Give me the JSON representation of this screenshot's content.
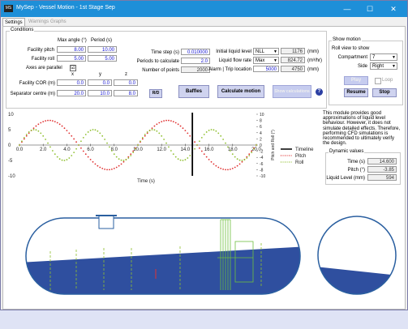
{
  "titlebar": {
    "icon_text": "MS",
    "title": "MySep - Vessel Motion - 1st Stage Sep",
    "minimize": "—",
    "maximize": "☐",
    "close": "✕"
  },
  "tabs": [
    {
      "label": "Settings"
    },
    {
      "label": "Warnings"
    },
    {
      "label": "Graphs"
    }
  ],
  "conditions": {
    "legend": "Conditions",
    "col_max_angle": "Max angle (°)",
    "col_period": "Period (s)",
    "facility_pitch_label": "Facility pitch",
    "facility_pitch_angle": "8.00",
    "facility_pitch_period": "10.00",
    "facility_roll_label": "Facility roll",
    "facility_roll_angle": "5.00",
    "facility_roll_period": "5.00",
    "axes_parallel_label": "Axes are parallel",
    "axes_parallel_checked": "☑",
    "col_x": "x",
    "col_y": "y",
    "col_z": "z",
    "facility_cor_label": "Facility COR (m)",
    "facility_cor": [
      "0.0",
      "0.0",
      "0.0"
    ],
    "separator_centre_label": "Separator centre (m)",
    "separator_centre": [
      "20.0",
      "10.0",
      "8.0"
    ],
    "time_step_label": "Time step (s)",
    "time_step": "0.010000",
    "periods_label": "Periods to calculate",
    "periods": "2.0",
    "num_points_label": "Number of points",
    "num_points": "2000",
    "initial_level_label": "Initial liquid level",
    "initial_level_select": "NLL",
    "initial_level_value": "1176",
    "unit_mm": "(mm)",
    "liquid_flow_label": "Liquid flow rate",
    "liquid_flow_select": "Max",
    "liquid_flow_value": "824.72",
    "unit_flow": "(m³/hr)",
    "alarm_label": "Alarm | Trip location",
    "alarm_value": "5000",
    "trip_value": "4750",
    "rb_button": "R/D",
    "baffles_button": "Baffles",
    "calc_button": "Calculate motion",
    "show_results_button": "Show calculations",
    "help": "?"
  },
  "show_motion": {
    "legend": "Show motion",
    "roll_view_label": "Roll view to show",
    "compartment_label": "Compartment",
    "compartment_value": "7",
    "side_label": "Side",
    "side_value": "Right",
    "play_button": "Play",
    "loop_label": "Loop",
    "resume_button": "Resume",
    "stop_button": "Stop"
  },
  "chart_data": {
    "type": "line",
    "xlabel": "Time (s)",
    "ylabel": "Pitch and Roll (°)",
    "xlim": [
      0,
      20
    ],
    "ylim": [
      -10,
      10
    ],
    "x_ticks": [
      "0.0",
      "2.0",
      "4.0",
      "6.0",
      "8.0",
      "10.0",
      "12.0",
      "14.0",
      "16.0",
      "18.0",
      "20.0"
    ],
    "y_ticks_left": [
      "10",
      "5",
      "0",
      "-5",
      "-10"
    ],
    "y_ticks_right": [
      "10",
      "8",
      "6",
      "4",
      "2",
      "0",
      "-2",
      "-4",
      "-6",
      "-8",
      "-10"
    ],
    "series": [
      {
        "name": "Pitch",
        "amplitude": 8.0,
        "period": 10.0,
        "color": "#e03030",
        "style": "dotted"
      },
      {
        "name": "Roll",
        "amplitude": 5.0,
        "period": 5.0,
        "color": "#8fbf2f",
        "style": "dotted"
      }
    ],
    "timeline": {
      "name": "Timeline",
      "x": 14.6,
      "color": "#000000"
    }
  },
  "info_text": "This module provides good approximations of liquid level behaviour. However, it does not simulate detailed effects. Therefore, performing CFD simulations is recommended to ultimately verify the design.",
  "dynamic": {
    "legend": "Dynamic values",
    "time_label": "Time (s)",
    "time_value": "14.600",
    "pitch_label": "Pitch (°)",
    "pitch_value": "-3.85",
    "level_label": "Liquid Level (mm)",
    "level_value": "594"
  },
  "colors": {
    "titlebar": "#1e8fd8",
    "vessel_outline": "#2a5fa0",
    "liquid": "#2f4f9f",
    "baffle": "#6fbf3f",
    "pitch": "#e03030",
    "roll": "#8fbf2f"
  }
}
